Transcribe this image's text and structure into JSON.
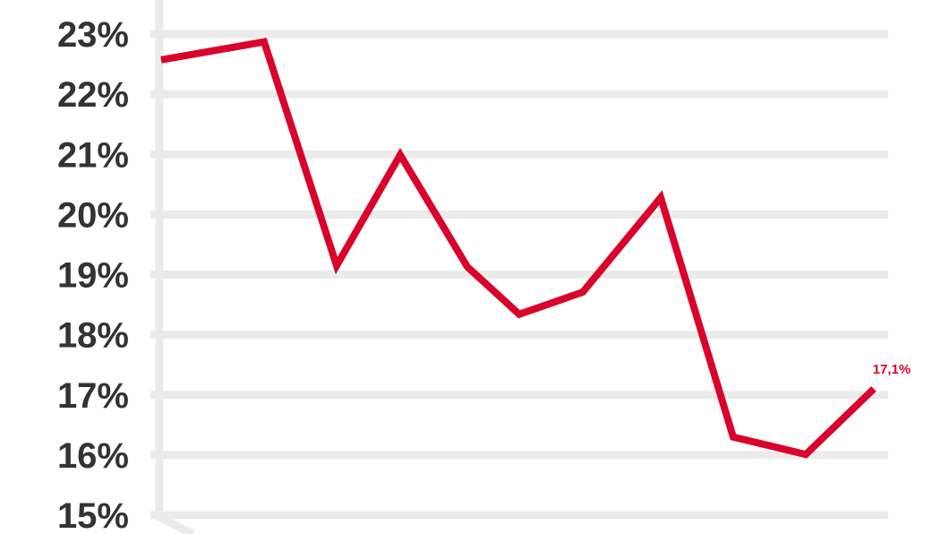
{
  "chart_data": {
    "type": "line",
    "title": "",
    "xlabel": "",
    "ylabel": "",
    "ylim": [
      15,
      23
    ],
    "y_ticks": [
      "15%",
      "16%",
      "17%",
      "18%",
      "19%",
      "20%",
      "21%",
      "22%",
      "23%"
    ],
    "grid": true,
    "series": [
      {
        "values": [
          22.57,
          22.87,
          19.15,
          20.99,
          19.13,
          18.34,
          18.71,
          20.28,
          16.3,
          16.01,
          17.1
        ],
        "color": "#d9042b"
      }
    ],
    "annotations": [
      {
        "point_index": 10,
        "text": "17,1%"
      }
    ],
    "colors": {
      "line": "#d9042b",
      "grid": "#ebebeb",
      "tick_text": "#333333"
    }
  }
}
